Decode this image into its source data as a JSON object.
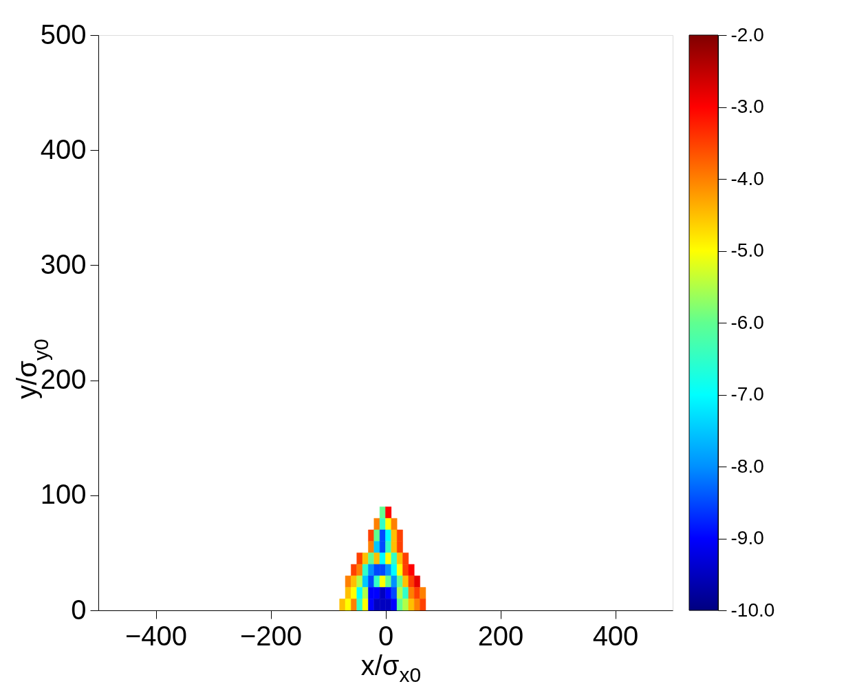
{
  "chart_data": {
    "type": "scatter",
    "marker": "square",
    "xlabel": "x/σ$_{x0}$",
    "ylabel": "y/σ$_{y0}$",
    "series": [
      {
        "x": [
          -5,
          5
        ],
        "values": [
          85,
          85
        ],
        "cvalues": [
          -6.0,
          -3.0
        ],
        "colors": [
          "#60ff90",
          "#ff0000"
        ]
      },
      {
        "x": [
          -15,
          -5,
          5,
          15
        ],
        "values": [
          75,
          75,
          75,
          75
        ],
        "cvalues": [
          -4.0,
          -6.5,
          -5.0,
          -4.0
        ],
        "colors": [
          "#ff8000",
          "#30ffc7",
          "#ffff00",
          "#ff8000"
        ]
      },
      {
        "x": [
          -25,
          -15,
          -5,
          5,
          15,
          25
        ],
        "values": [
          65,
          65,
          65,
          65,
          65,
          65
        ],
        "cvalues": [
          -3.5,
          -6.0,
          -8.5,
          -7.0,
          -4.5,
          -3.5
        ],
        "colors": [
          "#ff4000",
          "#60ff90",
          "#0048ff",
          "#00ffff",
          "#ffbf00",
          "#ff4000"
        ]
      },
      {
        "x": [
          -25,
          -15,
          -5,
          5,
          15,
          25
        ],
        "values": [
          55,
          55,
          55,
          55,
          55,
          55
        ],
        "cvalues": [
          -4.0,
          -7.5,
          -8.5,
          -6.5,
          -4.5,
          -3.5
        ],
        "colors": [
          "#ff8000",
          "#00c7ff",
          "#0048ff",
          "#30ffc7",
          "#ffbf00",
          "#ff4000"
        ]
      },
      {
        "x": [
          -45,
          -35,
          -25,
          -15,
          -5,
          5,
          15,
          25,
          35
        ],
        "values": [
          45,
          45,
          45,
          45,
          45,
          45,
          45,
          45,
          45
        ],
        "cvalues": [
          -3.5,
          -4.5,
          -6.0,
          -4.5,
          -7.0,
          -5.0,
          -6.5,
          -4.5,
          -3.5
        ],
        "colors": [
          "#ff4000",
          "#ffbf00",
          "#60ff90",
          "#ffbf00",
          "#00ffff",
          "#ffff00",
          "#30ffc7",
          "#ffbf00",
          "#ff4000"
        ]
      },
      {
        "x": [
          -55,
          -45,
          -35,
          -25,
          -15,
          -5,
          5,
          15,
          25,
          35,
          45
        ],
        "values": [
          35,
          35,
          35,
          35,
          35,
          35,
          35,
          35,
          35,
          35,
          35
        ],
        "cvalues": [
          -3.5,
          -4.0,
          -6.5,
          -8.0,
          -8.5,
          -8.5,
          -8.0,
          -7.0,
          -5.0,
          -3.5,
          -3.0
        ],
        "colors": [
          "#ff4000",
          "#ff8000",
          "#30ffc7",
          "#0090ff",
          "#0048ff",
          "#0048ff",
          "#0090ff",
          "#00ffff",
          "#ffff00",
          "#ff4000",
          "#ff0000"
        ]
      },
      {
        "x": [
          -65,
          -55,
          -45,
          -35,
          -25,
          -15,
          -5,
          5,
          15,
          25,
          35,
          45,
          55
        ],
        "values": [
          25,
          25,
          25,
          25,
          25,
          25,
          25,
          25,
          25,
          25,
          25,
          25,
          25
        ],
        "cvalues": [
          -4.0,
          -4.5,
          -5.5,
          -7.5,
          -8.5,
          -6.5,
          -5.0,
          -6.0,
          -8.0,
          -6.0,
          -4.5,
          -3.5,
          -2.8
        ],
        "colors": [
          "#ff8000",
          "#ffbf00",
          "#afff48",
          "#00c7ff",
          "#0048ff",
          "#30ffc7",
          "#ffff00",
          "#60ff90",
          "#0090ff",
          "#60ff90",
          "#ffbf00",
          "#ff4000",
          "#e60000"
        ]
      },
      {
        "x": [
          -65,
          -55,
          -45,
          -35,
          -25,
          -15,
          -5,
          5,
          15,
          25,
          35,
          45,
          55,
          65
        ],
        "values": [
          15,
          15,
          15,
          15,
          15,
          15,
          15,
          15,
          15,
          15,
          15,
          15,
          15,
          15
        ],
        "cvalues": [
          -4.5,
          -5.0,
          -7.0,
          -5.5,
          -9.0,
          -9.0,
          -9.5,
          -9.0,
          -8.5,
          -5.5,
          -6.5,
          -4.0,
          -3.5,
          -4.0
        ],
        "colors": [
          "#ffbf00",
          "#ffff00",
          "#00ffff",
          "#afff48",
          "#0000ff",
          "#0000ff",
          "#0000bf",
          "#0000ff",
          "#0048ff",
          "#afff48",
          "#30ffc7",
          "#ff8000",
          "#ff4000",
          "#ff8000"
        ]
      },
      {
        "x": [
          -75,
          -65,
          -55,
          -45,
          -35,
          -25,
          -15,
          -5,
          5,
          15,
          25,
          35,
          45,
          55,
          65
        ],
        "values": [
          5,
          5,
          5,
          5,
          5,
          5,
          5,
          5,
          5,
          5,
          5,
          5,
          5,
          5,
          5
        ],
        "cvalues": [
          -4.5,
          -5.0,
          -4.0,
          -6.5,
          -5.0,
          -9.0,
          -9.5,
          -9.5,
          -9.5,
          -9.0,
          -6.0,
          -5.5,
          -4.5,
          -4.0,
          -3.5
        ],
        "colors": [
          "#ffbf00",
          "#ffff00",
          "#ff8000",
          "#30ffc7",
          "#ffff00",
          "#0000ff",
          "#0000bf",
          "#0000bf",
          "#0000bf",
          "#0000ff",
          "#60ff90",
          "#afff48",
          "#ffbf00",
          "#ff8000",
          "#ff4000"
        ]
      }
    ],
    "colors": [
      "#000080",
      "#0000ff",
      "#0090ff",
      "#00ffff",
      "#60ff90",
      "#ffff00",
      "#ff8000",
      "#ff0000",
      "#800000"
    ],
    "xlim": [
      -500,
      500
    ],
    "ylim": [
      0,
      500
    ],
    "xticks": [
      -400,
      -200,
      0,
      200,
      400
    ],
    "yticks": [
      0,
      100,
      200,
      300,
      400,
      500
    ],
    "clim": [
      -10.0,
      -2.0
    ],
    "cticks": [
      {
        "value": -10,
        "label": "-10.0"
      },
      {
        "value": -9,
        "label": "-9.0"
      },
      {
        "value": -8,
        "label": "-8.0"
      },
      {
        "value": -7,
        "label": "-7.0"
      },
      {
        "value": -6,
        "label": "-6.0"
      },
      {
        "value": -5,
        "label": "-5.0"
      },
      {
        "value": -4,
        "label": "-4.0"
      },
      {
        "value": -3,
        "label": "-3.0"
      },
      {
        "value": -2,
        "label": "-2.0"
      }
    ]
  }
}
